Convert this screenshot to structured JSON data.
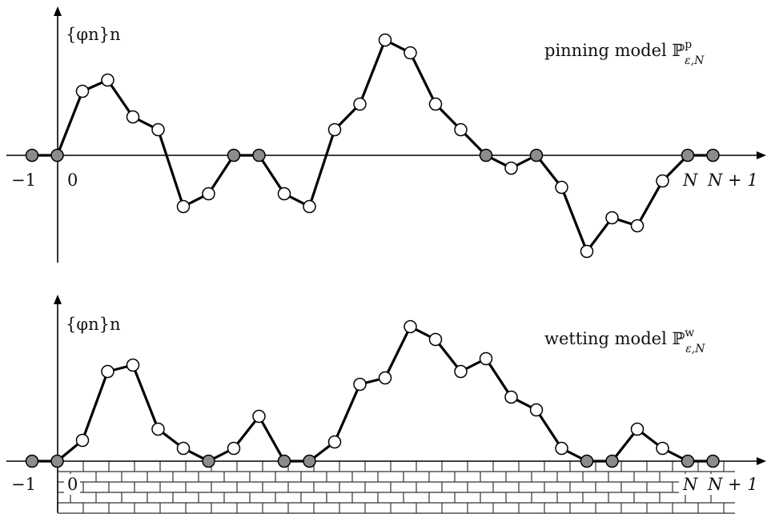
{
  "panels": [
    {
      "id": "pinning",
      "y_label": "{φn}n",
      "model_label": "pinning model ",
      "model_symbol": "ℙ",
      "model_superscript": "p",
      "model_subscript": "ε,N",
      "tick_labels": {
        "minus_one": "−1",
        "zero": "0",
        "n": "N",
        "n_plus_one": "N + 1"
      },
      "has_wall": false,
      "path": [
        {
          "n": -1,
          "y": 0,
          "pinned": true
        },
        {
          "n": 0,
          "y": 0,
          "pinned": true
        },
        {
          "n": 1,
          "y": 80,
          "pinned": false
        },
        {
          "n": 2,
          "y": 94,
          "pinned": false
        },
        {
          "n": 3,
          "y": 48,
          "pinned": false
        },
        {
          "n": 4,
          "y": 32,
          "pinned": false
        },
        {
          "n": 5,
          "y": -64,
          "pinned": false
        },
        {
          "n": 6,
          "y": -48,
          "pinned": false
        },
        {
          "n": 7,
          "y": 0,
          "pinned": true
        },
        {
          "n": 8,
          "y": 0,
          "pinned": true
        },
        {
          "n": 9,
          "y": -48,
          "pinned": false
        },
        {
          "n": 10,
          "y": -64,
          "pinned": false
        },
        {
          "n": 11,
          "y": 32,
          "pinned": false
        },
        {
          "n": 12,
          "y": 64,
          "pinned": false
        },
        {
          "n": 13,
          "y": 144,
          "pinned": false
        },
        {
          "n": 14,
          "y": 128,
          "pinned": false
        },
        {
          "n": 15,
          "y": 64,
          "pinned": false
        },
        {
          "n": 16,
          "y": 32,
          "pinned": false
        },
        {
          "n": 17,
          "y": 0,
          "pinned": true
        },
        {
          "n": 18,
          "y": -16,
          "pinned": false
        },
        {
          "n": 19,
          "y": 0,
          "pinned": true
        },
        {
          "n": 20,
          "y": -40,
          "pinned": false
        },
        {
          "n": 21,
          "y": -120,
          "pinned": false
        },
        {
          "n": 22,
          "y": -78,
          "pinned": false
        },
        {
          "n": 23,
          "y": -88,
          "pinned": false
        },
        {
          "n": 24,
          "y": -32,
          "pinned": false
        },
        {
          "n": 25,
          "y": 0,
          "pinned": true
        },
        {
          "n": 26,
          "y": 0,
          "pinned": true
        }
      ]
    },
    {
      "id": "wetting",
      "y_label": "{φn}n",
      "model_label": "wetting model ",
      "model_symbol": "ℙ",
      "model_superscript": "w",
      "model_subscript": "ε,N",
      "tick_labels": {
        "minus_one": "−1",
        "zero": "0",
        "n": "N",
        "n_plus_one": "N + 1"
      },
      "has_wall": true,
      "path": [
        {
          "n": -1,
          "y": 0,
          "pinned": true
        },
        {
          "n": 0,
          "y": 0,
          "pinned": true
        },
        {
          "n": 1,
          "y": 26,
          "pinned": false
        },
        {
          "n": 2,
          "y": 112,
          "pinned": false
        },
        {
          "n": 3,
          "y": 120,
          "pinned": false
        },
        {
          "n": 4,
          "y": 40,
          "pinned": false
        },
        {
          "n": 5,
          "y": 16,
          "pinned": false
        },
        {
          "n": 6,
          "y": 0,
          "pinned": true
        },
        {
          "n": 7,
          "y": 16,
          "pinned": false
        },
        {
          "n": 8,
          "y": 56,
          "pinned": false
        },
        {
          "n": 9,
          "y": 0,
          "pinned": true
        },
        {
          "n": 10,
          "y": 0,
          "pinned": true
        },
        {
          "n": 11,
          "y": 24,
          "pinned": false
        },
        {
          "n": 12,
          "y": 96,
          "pinned": false
        },
        {
          "n": 13,
          "y": 104,
          "pinned": false
        },
        {
          "n": 14,
          "y": 168,
          "pinned": false
        },
        {
          "n": 15,
          "y": 152,
          "pinned": false
        },
        {
          "n": 16,
          "y": 112,
          "pinned": false
        },
        {
          "n": 17,
          "y": 128,
          "pinned": false
        },
        {
          "n": 18,
          "y": 80,
          "pinned": false
        },
        {
          "n": 19,
          "y": 64,
          "pinned": false
        },
        {
          "n": 20,
          "y": 16,
          "pinned": false
        },
        {
          "n": 21,
          "y": 0,
          "pinned": true
        },
        {
          "n": 22,
          "y": 0,
          "pinned": true
        },
        {
          "n": 23,
          "y": 40,
          "pinned": false
        },
        {
          "n": 24,
          "y": 16,
          "pinned": false
        },
        {
          "n": 25,
          "y": 0,
          "pinned": true
        },
        {
          "n": 26,
          "y": 0,
          "pinned": true
        }
      ]
    }
  ],
  "colors": {
    "pinned_fill": "#8c8c8c",
    "free_fill": "#ffffff",
    "stroke": "#000000",
    "wall": "#333333"
  }
}
